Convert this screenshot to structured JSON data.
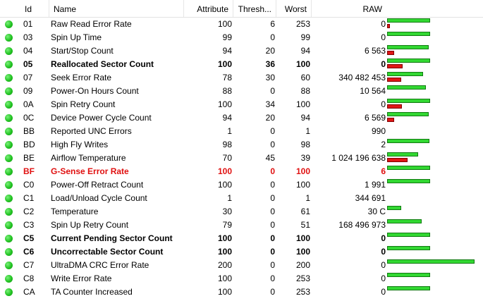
{
  "headers": {
    "id": "Id",
    "name": "Name",
    "attribute": "Attribute",
    "threshold": "Thresh...",
    "worst": "Worst",
    "raw": "RAW"
  },
  "rows": [
    {
      "id": "01",
      "name": "Raw Read Error Rate",
      "attribute": "100",
      "threshold": "6",
      "worst": "253",
      "raw": "0",
      "style": "normal",
      "value_level": 0.47,
      "raw_level": 0.03
    },
    {
      "id": "03",
      "name": "Spin Up Time",
      "attribute": "99",
      "threshold": "0",
      "worst": "99",
      "raw": "0",
      "style": "normal",
      "value_level": 0.47,
      "raw_level": 0
    },
    {
      "id": "04",
      "name": "Start/Stop Count",
      "attribute": "94",
      "threshold": "20",
      "worst": "94",
      "raw": "6 563",
      "style": "normal",
      "value_level": 0.45,
      "raw_level": 0.08
    },
    {
      "id": "05",
      "name": "Reallocated Sector Count",
      "attribute": "100",
      "threshold": "36",
      "worst": "100",
      "raw": "0",
      "style": "bold",
      "value_level": 0.47,
      "raw_level": 0.17
    },
    {
      "id": "07",
      "name": "Seek Error Rate",
      "attribute": "78",
      "threshold": "30",
      "worst": "60",
      "raw": "340 482 453",
      "style": "normal",
      "value_level": 0.39,
      "raw_level": 0.15
    },
    {
      "id": "09",
      "name": "Power-On Hours Count",
      "attribute": "88",
      "threshold": "0",
      "worst": "88",
      "raw": "10 564",
      "style": "normal",
      "value_level": 0.42,
      "raw_level": 0
    },
    {
      "id": "0A",
      "name": "Spin Retry Count",
      "attribute": "100",
      "threshold": "34",
      "worst": "100",
      "raw": "0",
      "style": "normal",
      "value_level": 0.47,
      "raw_level": 0.16
    },
    {
      "id": "0C",
      "name": "Device Power Cycle Count",
      "attribute": "94",
      "threshold": "20",
      "worst": "94",
      "raw": "6 569",
      "style": "normal",
      "value_level": 0.45,
      "raw_level": 0.08
    },
    {
      "id": "BB",
      "name": "Reported UNC Errors",
      "attribute": "1",
      "threshold": "0",
      "worst": "1",
      "raw": "990",
      "style": "normal",
      "value_level": 0,
      "raw_level": 0
    },
    {
      "id": "BD",
      "name": "High Fly Writes",
      "attribute": "98",
      "threshold": "0",
      "worst": "98",
      "raw": "2",
      "style": "normal",
      "value_level": 0.46,
      "raw_level": 0
    },
    {
      "id": "BE",
      "name": "Airflow Temperature",
      "attribute": "70",
      "threshold": "45",
      "worst": "39",
      "raw": "1 024 196 638",
      "style": "normal",
      "value_level": 0.34,
      "raw_level": 0.22
    },
    {
      "id": "BF",
      "name": "G-Sense Error Rate",
      "attribute": "100",
      "threshold": "0",
      "worst": "100",
      "raw": "6",
      "style": "red",
      "value_level": 0.47,
      "raw_level": 0
    },
    {
      "id": "C0",
      "name": "Power-Off Retract Count",
      "attribute": "100",
      "threshold": "0",
      "worst": "100",
      "raw": "1 991",
      "style": "normal",
      "value_level": 0.47,
      "raw_level": 0
    },
    {
      "id": "C1",
      "name": "Load/Unload Cycle Count",
      "attribute": "1",
      "threshold": "0",
      "worst": "1",
      "raw": "344 691",
      "style": "normal",
      "value_level": 0,
      "raw_level": 0
    },
    {
      "id": "C2",
      "name": "Temperature",
      "attribute": "30",
      "threshold": "0",
      "worst": "61",
      "raw": "30 C",
      "style": "normal",
      "value_level": 0.15,
      "raw_level": 0
    },
    {
      "id": "C3",
      "name": "Spin Up Retry Count",
      "attribute": "79",
      "threshold": "0",
      "worst": "51",
      "raw": "168 496 973",
      "style": "normal",
      "value_level": 0.38,
      "raw_level": 0
    },
    {
      "id": "C5",
      "name": "Current Pending Sector Count",
      "attribute": "100",
      "threshold": "0",
      "worst": "100",
      "raw": "0",
      "style": "bold",
      "value_level": 0.47,
      "raw_level": 0
    },
    {
      "id": "C6",
      "name": "Uncorrectable Sector Count",
      "attribute": "100",
      "threshold": "0",
      "worst": "100",
      "raw": "0",
      "style": "bold",
      "value_level": 0.47,
      "raw_level": 0
    },
    {
      "id": "C7",
      "name": "UltraDMA CRC Error Rate",
      "attribute": "200",
      "threshold": "0",
      "worst": "200",
      "raw": "0",
      "style": "normal",
      "value_level": 0.95,
      "raw_level": 0
    },
    {
      "id": "C8",
      "name": "Write Error Rate",
      "attribute": "100",
      "threshold": "0",
      "worst": "253",
      "raw": "0",
      "style": "normal",
      "value_level": 0.47,
      "raw_level": 0
    },
    {
      "id": "CA",
      "name": "TA Counter Increased",
      "attribute": "100",
      "threshold": "0",
      "worst": "253",
      "raw": "0",
      "style": "normal",
      "value_level": 0.47,
      "raw_level": 0
    }
  ]
}
